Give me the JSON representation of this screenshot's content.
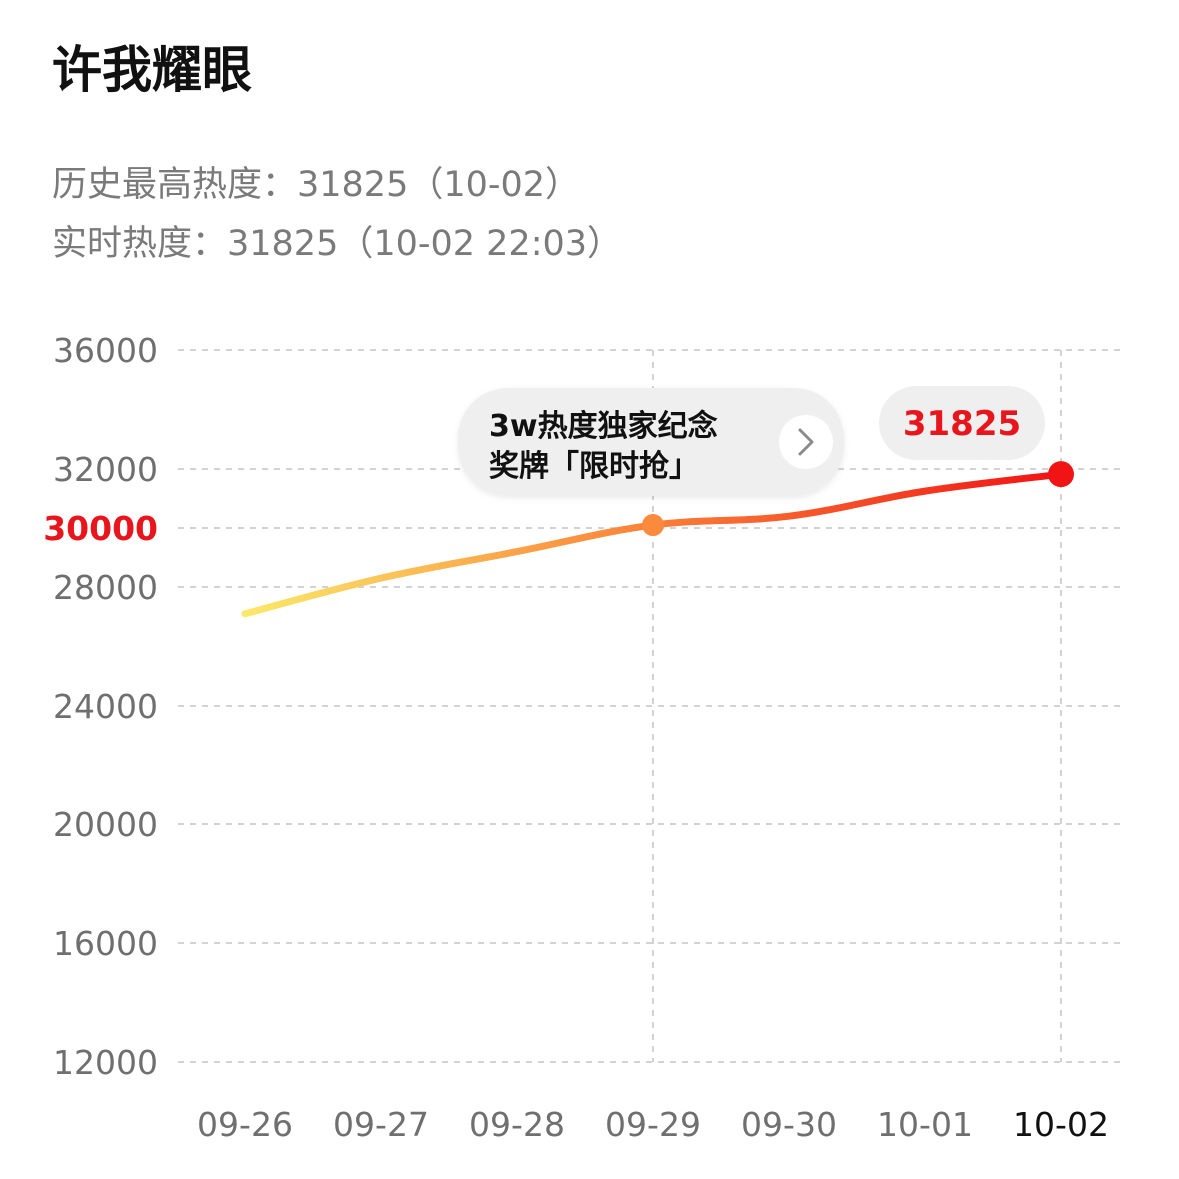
{
  "title": "许我耀眼",
  "stats": {
    "peak": "历史最高热度：31825（10-02）",
    "live": "实时热度：31825（10-02 22:03）"
  },
  "promo": {
    "line1": "3w热度独家纪念",
    "line2": "奖牌「限时抢」",
    "arrow": "›"
  },
  "colors": {
    "accent": "#e8161c",
    "line_start": "#fbe86a",
    "line_mid": "#fb8a3c",
    "line_end": "#f01414"
  },
  "chart_data": {
    "type": "line",
    "categories": [
      "09-26",
      "09-27",
      "09-28",
      "09-29",
      "09-30",
      "10-01",
      "10-02"
    ],
    "values": [
      27100,
      28300,
      29200,
      30100,
      30400,
      31250,
      31825
    ],
    "y_ticks": [
      "36000",
      "32000",
      "30000",
      "28000",
      "24000",
      "20000",
      "16000",
      "12000"
    ],
    "highlight_tick": "30000",
    "milestone": {
      "category": "09-29",
      "value": 30100
    },
    "current_label": "31825",
    "highlight_category": "10-02",
    "grid": true
  }
}
